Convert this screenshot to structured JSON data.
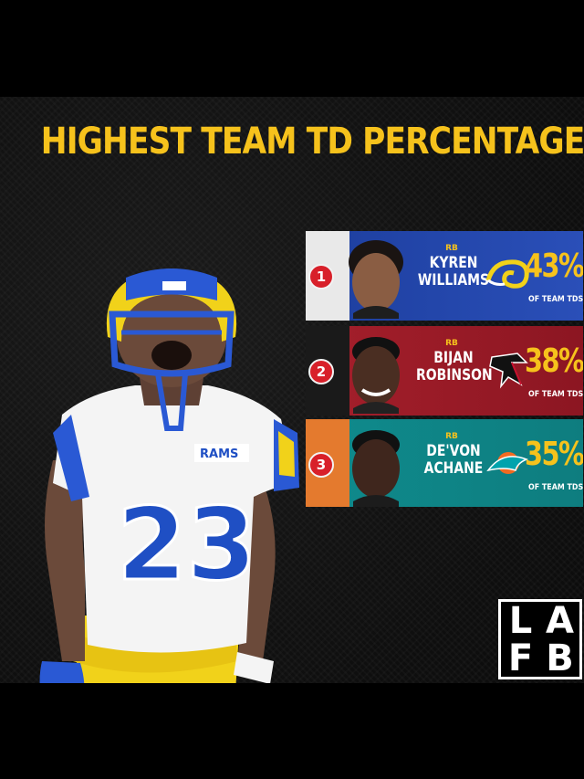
{
  "headline": "HIGHEST TEAM TD PERCENTAGE",
  "player_jersey": {
    "number": "23",
    "team_text": "RAMS"
  },
  "rankings": [
    {
      "rank": "1",
      "position": "RB",
      "name_line1": "KYREN",
      "name_line2": "WILLIAMS",
      "team_logo": "rams-horn-logo-icon",
      "percent": "43%",
      "subtitle": "OF TEAM TDS",
      "color": "#1d3e9e"
    },
    {
      "rank": "2",
      "position": "RB",
      "name_line1": "BIJAN",
      "name_line2": "ROBINSON",
      "team_logo": "falcon-logo-icon",
      "percent": "38%",
      "subtitle": "OF TEAM TDS",
      "color": "#a51f2b"
    },
    {
      "rank": "3",
      "position": "RB",
      "name_line1": "DE'VON",
      "name_line2": "ACHANE",
      "team_logo": "dolphin-logo-icon",
      "percent": "35%",
      "subtitle": "OF TEAM TDS",
      "color": "#0f8b8d"
    }
  ],
  "brand_logo": {
    "top_left": "L",
    "top_right": "A",
    "bottom_left": "F",
    "bottom_right": "B"
  },
  "colors": {
    "accent": "#f6c21c",
    "rams_blue": "#1f54c8",
    "background": "#000000"
  }
}
